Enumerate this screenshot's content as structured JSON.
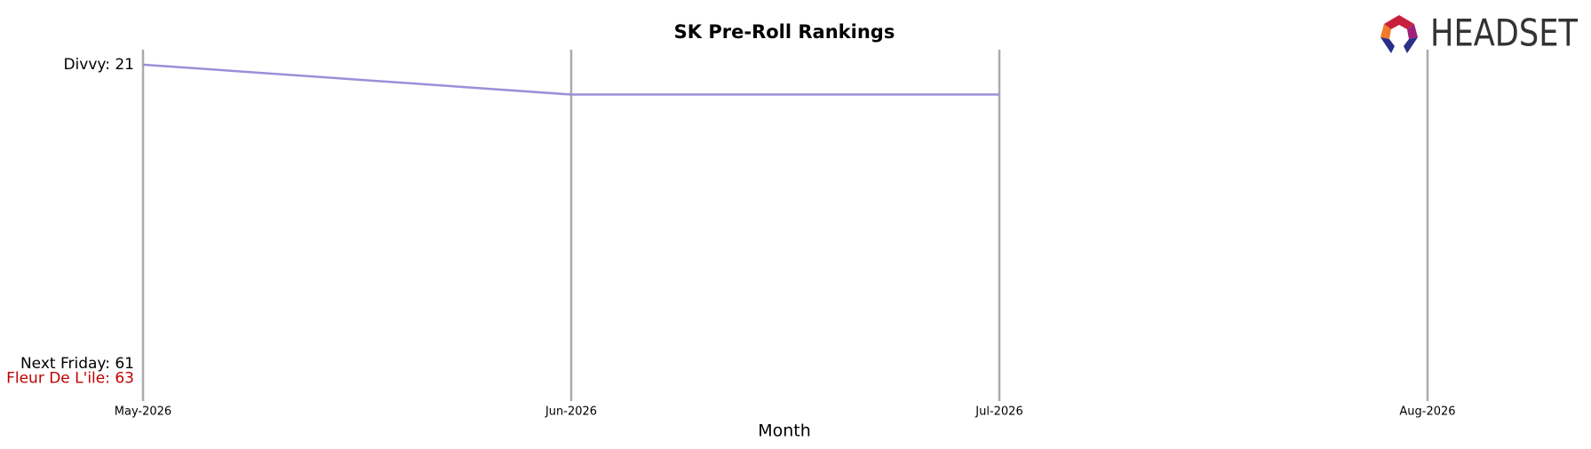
{
  "logo_text": "HEADSET",
  "chart_data": {
    "type": "line",
    "title": "SK Pre-Roll Rankings",
    "xlabel": "Month",
    "categories": [
      "May-2026",
      "Jun-2026",
      "Jul-2026",
      "Aug-2026"
    ],
    "ylim": [
      19,
      66
    ],
    "y_inverted": true,
    "series": [
      {
        "name": "Divvy",
        "color": "#9b8fd8",
        "label_color": "#000000",
        "values": [
          21,
          25,
          25,
          null
        ],
        "value_labels": [
          "Divvy: 21",
          null,
          null,
          null
        ]
      },
      {
        "name": "Next Friday",
        "color": "#9b8fd8",
        "label_color": "#000000",
        "values": [
          61,
          null,
          null,
          null
        ],
        "value_labels": [
          "Next Friday: 61",
          null,
          null,
          null
        ]
      },
      {
        "name": "Fleur De L'ile",
        "color": "#c00000",
        "label_color": "#c00000",
        "values": [
          63,
          null,
          null,
          null
        ],
        "value_labels": [
          "Fleur De L'ile: 63",
          null,
          null,
          null
        ]
      }
    ]
  }
}
